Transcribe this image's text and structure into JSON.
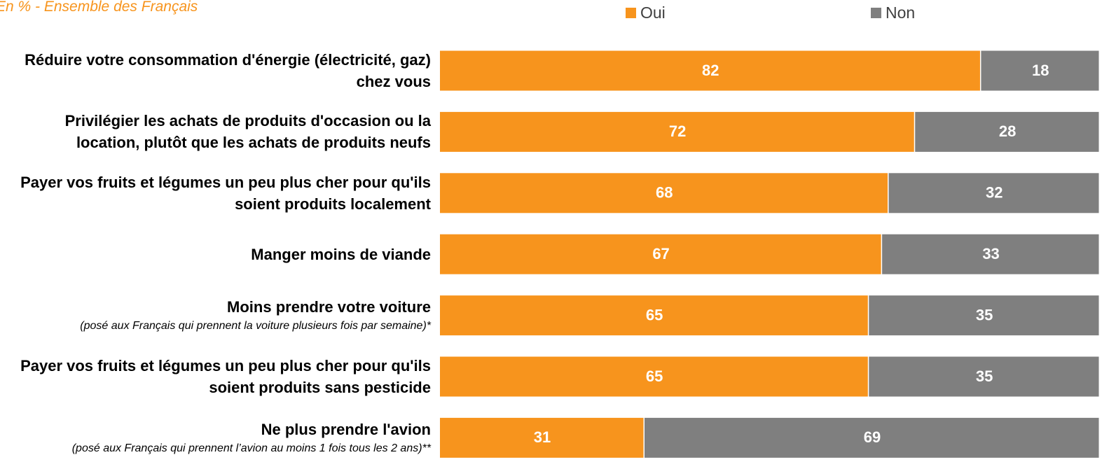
{
  "chart_data": {
    "type": "stacked-bar-horizontal",
    "subtitle": "En % - Ensemble des Français",
    "categories": [
      "Réduire votre consommation d'énergie (électricité, gaz) chez vous",
      "Privilégier les achats de produits d'occasion ou la location, plutôt que les achats de produits neufs",
      "Payer vos fruits et légumes un peu plus cher pour qu'ils soient produits localement",
      "Manger moins de viande",
      "Moins prendre votre voiture",
      "Payer vos fruits et légumes un peu plus cher pour qu'ils soient produits sans pesticide",
      "Ne plus prendre l'avion"
    ],
    "notes": [
      null,
      null,
      null,
      null,
      "(posé aux Français qui prennent la voiture plusieurs fois par semaine)*",
      null,
      "(posé aux Français qui prennent l’avion au moins 1 fois tous les 2 ans)**"
    ],
    "series": [
      {
        "name": "Oui",
        "color": "#f7941d",
        "values": [
          82,
          72,
          68,
          67,
          65,
          65,
          31
        ]
      },
      {
        "name": "Non",
        "color": "#7f7f7f",
        "values": [
          18,
          28,
          32,
          33,
          35,
          35,
          69
        ]
      }
    ],
    "xlim": [
      0,
      100
    ]
  }
}
